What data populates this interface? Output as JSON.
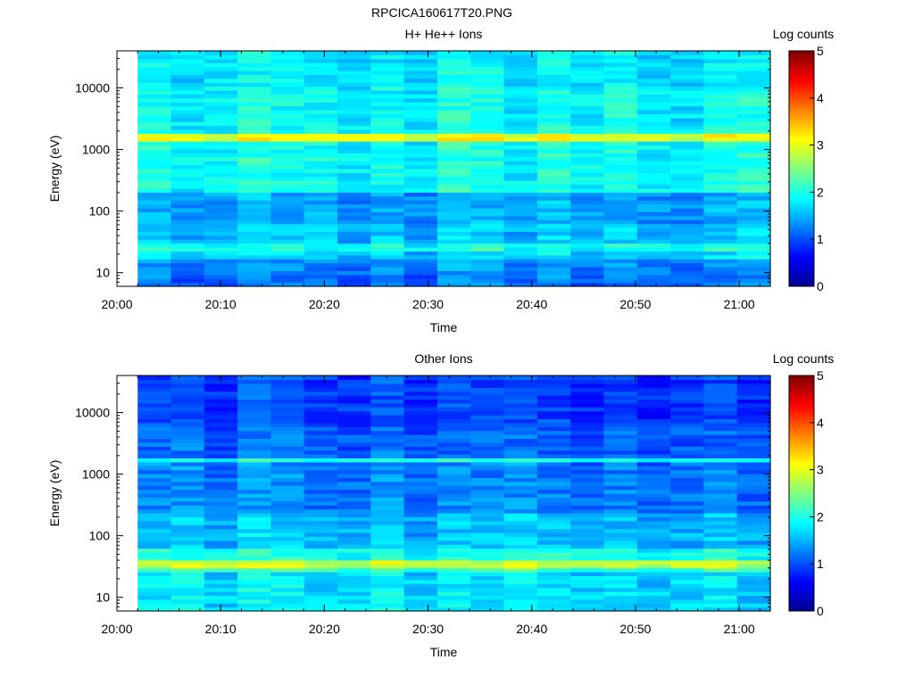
{
  "figure_title": "RPCICA160617T20.PNG",
  "colors": {
    "colormap": [
      "#00008f",
      "#0000ff",
      "#0080ff",
      "#00ffff",
      "#80ff80",
      "#ffff00",
      "#ff8000",
      "#ff0000",
      "#800000"
    ]
  },
  "chart_data": [
    {
      "type": "heatmap",
      "title": "H+ He++ Ions",
      "xlabel": "Time",
      "ylabel": "Energy (eV)",
      "x_ticks": [
        "20:00",
        "20:10",
        "20:20",
        "20:30",
        "20:40",
        "20:50",
        "21:00"
      ],
      "x_range": [
        "20:00",
        "21:03"
      ],
      "data_start": "20:02",
      "y_scale": "log",
      "y_ticks": [
        "10",
        "100",
        "1000",
        "10000"
      ],
      "y_range": [
        6,
        40000
      ],
      "colorbar": {
        "label": "Log counts",
        "ticks": [
          "0",
          "1",
          "2",
          "3",
          "4",
          "5"
        ],
        "range": [
          0,
          5
        ]
      },
      "energy_bands": [
        {
          "energy_eV": [
            6,
            9
          ],
          "log_counts": 1.2
        },
        {
          "energy_eV": [
            9,
            18
          ],
          "log_counts": 1.3
        },
        {
          "energy_eV": [
            18,
            22
          ],
          "log_counts": 1.7
        },
        {
          "energy_eV": [
            22,
            30
          ],
          "log_counts": 2.0
        },
        {
          "energy_eV": [
            30,
            60
          ],
          "log_counts": 1.6
        },
        {
          "energy_eV": [
            60,
            200
          ],
          "log_counts": 1.45
        },
        {
          "energy_eV": [
            200,
            1400
          ],
          "log_counts": 1.95
        },
        {
          "energy_eV": [
            1400,
            1900
          ],
          "log_counts": 3.05
        },
        {
          "energy_eV": [
            1900,
            10000
          ],
          "log_counts": 1.9
        },
        {
          "energy_eV": [
            10000,
            40000
          ],
          "log_counts": 1.8
        }
      ]
    },
    {
      "type": "heatmap",
      "title": "Other Ions",
      "xlabel": "Time",
      "ylabel": "Energy (eV)",
      "x_ticks": [
        "20:00",
        "20:10",
        "20:20",
        "20:30",
        "20:40",
        "20:50",
        "21:00"
      ],
      "x_range": [
        "20:00",
        "21:03"
      ],
      "data_start": "20:02",
      "y_scale": "log",
      "y_ticks": [
        "10",
        "100",
        "1000",
        "10000"
      ],
      "y_range": [
        6,
        40000
      ],
      "colorbar": {
        "label": "Log counts",
        "ticks": [
          "0",
          "1",
          "2",
          "3",
          "4",
          "5"
        ],
        "range": [
          0,
          5
        ]
      },
      "energy_bands": [
        {
          "energy_eV": [
            6,
            25
          ],
          "log_counts": 1.75
        },
        {
          "energy_eV": [
            25,
            30
          ],
          "log_counts": 2.2
        },
        {
          "energy_eV": [
            30,
            42
          ],
          "log_counts": 2.85
        },
        {
          "energy_eV": [
            42,
            60
          ],
          "log_counts": 2.0
        },
        {
          "energy_eV": [
            60,
            250
          ],
          "log_counts": 1.55
        },
        {
          "energy_eV": [
            250,
            1500
          ],
          "log_counts": 1.25
        },
        {
          "energy_eV": [
            1500,
            1900
          ],
          "log_counts": 1.9
        },
        {
          "energy_eV": [
            1900,
            6000
          ],
          "log_counts": 1.1
        },
        {
          "energy_eV": [
            6000,
            40000
          ],
          "log_counts": 0.95
        }
      ]
    }
  ]
}
